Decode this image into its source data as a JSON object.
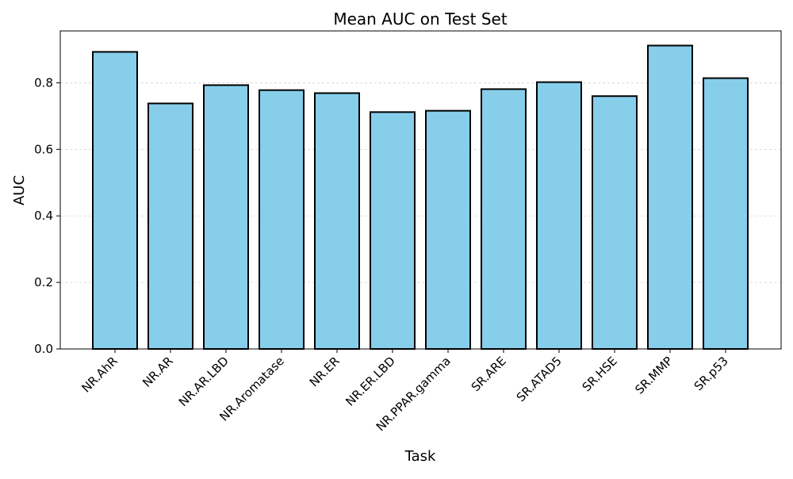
{
  "chart_data": {
    "type": "bar",
    "title": "Mean AUC on Test Set",
    "xlabel": "Task",
    "ylabel": "AUC",
    "categories": [
      "NR.AhR",
      "NR.AR",
      "NR.AR.LBD",
      "NR.Aromatase",
      "NR.ER",
      "NR.ER.LBD",
      "NR.PPAR.gamma",
      "SR.ARE",
      "SR.ATAD5",
      "SR.HSE",
      "SR.MMP",
      "SR.p53"
    ],
    "values": [
      0.893,
      0.738,
      0.793,
      0.778,
      0.769,
      0.712,
      0.716,
      0.781,
      0.802,
      0.76,
      0.912,
      0.814
    ],
    "ylim": [
      0,
      0.956
    ],
    "yticks": [
      "0.0",
      "0.2",
      "0.4",
      "0.6",
      "0.8"
    ],
    "grid": "y-dashed",
    "bar_color": "#87CEEB",
    "edge_color": "#000000",
    "grid_color": "#d3d3d3"
  }
}
